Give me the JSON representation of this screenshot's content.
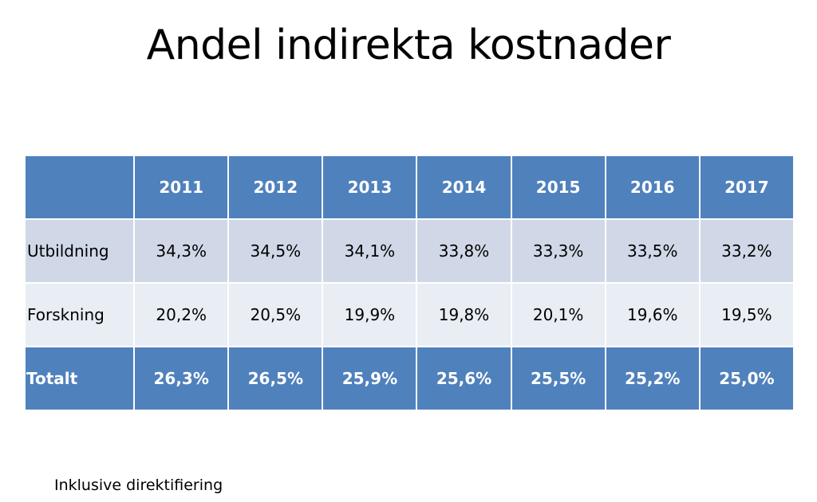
{
  "slide": {
    "title": "Andel indirekta kostnader",
    "footnote": "Inklusive direktifiering"
  },
  "table": {
    "header_blank": "",
    "years": [
      "2011",
      "2012",
      "2013",
      "2014",
      "2015",
      "2016",
      "2017"
    ],
    "rows": [
      {
        "label": "Utbildning",
        "values": [
          "34,3%",
          "34,5%",
          "34,1%",
          "33,8%",
          "33,3%",
          "33,5%",
          "33,2%"
        ]
      },
      {
        "label": "Forskning",
        "values": [
          "20,2%",
          "20,5%",
          "19,9%",
          "19,8%",
          "20,1%",
          "19,6%",
          "19,5%"
        ]
      },
      {
        "label": "Totalt",
        "values": [
          "26,3%",
          "26,5%",
          "25,9%",
          "25,6%",
          "25,5%",
          "25,2%",
          "25,0%"
        ]
      }
    ]
  },
  "colors": {
    "header_bg": "#4f81bd",
    "row_odd_bg": "#d0d8e8",
    "row_even_bg": "#e9edf4",
    "total_bg": "#4f81bd"
  }
}
